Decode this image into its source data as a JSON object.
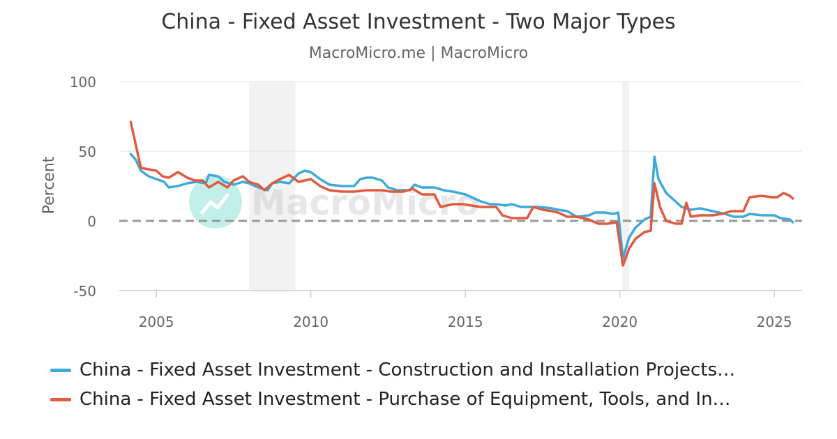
{
  "header": {
    "title": "China - Fixed Asset Investment - Two Major Types",
    "subtitle": "MacroMicro.me | MacroMicro"
  },
  "watermark": {
    "text": "MacroMicro",
    "color": "#4fd6c0"
  },
  "chart_data": {
    "type": "line",
    "title": "China - Fixed Asset Investment - Two Major Types",
    "subtitle": "MacroMicro.me | MacroMicro",
    "ylabel": "Percent",
    "xlabel": "",
    "xlim": [
      2003.8,
      2025.9
    ],
    "ylim": [
      -50,
      100
    ],
    "y_ticks": [
      100,
      50,
      0,
      -50
    ],
    "x_ticks": [
      2005,
      2010,
      2015,
      2020,
      2025
    ],
    "grid": true,
    "zero_line": "dashed",
    "legend_position": "bottom",
    "shaded_periods": [
      [
        2008.0,
        2009.5
      ],
      [
        2020.08,
        2020.3
      ]
    ],
    "series": [
      {
        "name": "China - Fixed Asset Investment - Construction and Installation Projects…",
        "color": "#3fa9dc",
        "points": [
          [
            2004.17,
            48
          ],
          [
            2004.33,
            44
          ],
          [
            2004.5,
            36
          ],
          [
            2004.75,
            32
          ],
          [
            2005.0,
            30
          ],
          [
            2005.25,
            28
          ],
          [
            2005.4,
            24
          ],
          [
            2005.7,
            25
          ],
          [
            2006.0,
            27
          ],
          [
            2006.3,
            28
          ],
          [
            2006.6,
            27
          ],
          [
            2006.7,
            33
          ],
          [
            2007.0,
            32
          ],
          [
            2007.2,
            28
          ],
          [
            2007.5,
            26
          ],
          [
            2007.8,
            28
          ],
          [
            2008.0,
            27
          ],
          [
            2008.3,
            24
          ],
          [
            2008.6,
            22
          ],
          [
            2008.75,
            27
          ],
          [
            2009.0,
            28
          ],
          [
            2009.3,
            27
          ],
          [
            2009.6,
            34
          ],
          [
            2009.8,
            36
          ],
          [
            2010.0,
            35
          ],
          [
            2010.3,
            30
          ],
          [
            2010.6,
            26
          ],
          [
            2011.0,
            25
          ],
          [
            2011.4,
            25
          ],
          [
            2011.6,
            30
          ],
          [
            2011.8,
            31
          ],
          [
            2012.0,
            31
          ],
          [
            2012.3,
            29
          ],
          [
            2012.5,
            24
          ],
          [
            2012.8,
            22
          ],
          [
            2013.0,
            22
          ],
          [
            2013.2,
            22
          ],
          [
            2013.35,
            26
          ],
          [
            2013.6,
            24
          ],
          [
            2014.0,
            24
          ],
          [
            2014.3,
            22
          ],
          [
            2014.6,
            21
          ],
          [
            2015.0,
            19
          ],
          [
            2015.3,
            16
          ],
          [
            2015.5,
            14
          ],
          [
            2015.8,
            12
          ],
          [
            2016.0,
            12
          ],
          [
            2016.3,
            11
          ],
          [
            2016.5,
            12
          ],
          [
            2016.8,
            10
          ],
          [
            2017.0,
            10
          ],
          [
            2017.4,
            10
          ],
          [
            2017.8,
            9
          ],
          [
            2018.0,
            8
          ],
          [
            2018.3,
            7
          ],
          [
            2018.6,
            3
          ],
          [
            2019.0,
            4
          ],
          [
            2019.2,
            6
          ],
          [
            2019.5,
            6
          ],
          [
            2019.8,
            5
          ],
          [
            2019.95,
            6
          ],
          [
            2020.1,
            -27
          ],
          [
            2020.3,
            -12
          ],
          [
            2020.5,
            -5
          ],
          [
            2020.8,
            1
          ],
          [
            2021.0,
            3
          ],
          [
            2021.12,
            46
          ],
          [
            2021.25,
            30
          ],
          [
            2021.5,
            20
          ],
          [
            2021.8,
            14
          ],
          [
            2022.0,
            10
          ],
          [
            2022.3,
            8
          ],
          [
            2022.6,
            9
          ],
          [
            2023.0,
            7
          ],
          [
            2023.4,
            5
          ],
          [
            2023.7,
            3
          ],
          [
            2024.0,
            3
          ],
          [
            2024.2,
            5
          ],
          [
            2024.6,
            4
          ],
          [
            2025.0,
            4
          ],
          [
            2025.2,
            2
          ],
          [
            2025.5,
            1
          ],
          [
            2025.6,
            -1
          ]
        ]
      },
      {
        "name": "China - Fixed Asset Investment - Purchase of Equipment, Tools, and In…",
        "color": "#e05a3f",
        "points": [
          [
            2004.17,
            71
          ],
          [
            2004.33,
            55
          ],
          [
            2004.5,
            38
          ],
          [
            2004.75,
            37
          ],
          [
            2005.0,
            36
          ],
          [
            2005.2,
            32
          ],
          [
            2005.4,
            31
          ],
          [
            2005.7,
            35
          ],
          [
            2006.0,
            31
          ],
          [
            2006.25,
            29
          ],
          [
            2006.5,
            29
          ],
          [
            2006.7,
            24
          ],
          [
            2007.0,
            28
          ],
          [
            2007.3,
            24
          ],
          [
            2007.5,
            29
          ],
          [
            2007.8,
            32
          ],
          [
            2008.0,
            28
          ],
          [
            2008.3,
            26
          ],
          [
            2008.5,
            22
          ],
          [
            2008.75,
            27
          ],
          [
            2009.0,
            30
          ],
          [
            2009.3,
            33
          ],
          [
            2009.6,
            28
          ],
          [
            2010.0,
            30
          ],
          [
            2010.3,
            25
          ],
          [
            2010.6,
            22
          ],
          [
            2011.0,
            21
          ],
          [
            2011.4,
            21
          ],
          [
            2011.8,
            22
          ],
          [
            2012.0,
            22
          ],
          [
            2012.3,
            22
          ],
          [
            2012.6,
            21
          ],
          [
            2013.0,
            21
          ],
          [
            2013.3,
            23
          ],
          [
            2013.6,
            19
          ],
          [
            2014.0,
            19
          ],
          [
            2014.2,
            10
          ],
          [
            2014.6,
            12
          ],
          [
            2014.9,
            12
          ],
          [
            2015.2,
            11
          ],
          [
            2015.5,
            10
          ],
          [
            2015.8,
            10
          ],
          [
            2016.0,
            10
          ],
          [
            2016.2,
            4
          ],
          [
            2016.5,
            2
          ],
          [
            2016.8,
            2
          ],
          [
            2017.0,
            2
          ],
          [
            2017.2,
            10
          ],
          [
            2017.5,
            8
          ],
          [
            2017.8,
            7
          ],
          [
            2018.0,
            6
          ],
          [
            2018.3,
            3
          ],
          [
            2018.6,
            3
          ],
          [
            2019.0,
            1
          ],
          [
            2019.3,
            -2
          ],
          [
            2019.6,
            -2
          ],
          [
            2019.9,
            -1
          ],
          [
            2020.1,
            -32
          ],
          [
            2020.3,
            -20
          ],
          [
            2020.5,
            -13
          ],
          [
            2020.8,
            -8
          ],
          [
            2021.0,
            -7
          ],
          [
            2021.12,
            27
          ],
          [
            2021.3,
            10
          ],
          [
            2021.5,
            0
          ],
          [
            2021.8,
            -2
          ],
          [
            2022.0,
            -2
          ],
          [
            2022.15,
            13
          ],
          [
            2022.3,
            3
          ],
          [
            2022.6,
            4
          ],
          [
            2023.0,
            4
          ],
          [
            2023.3,
            5
          ],
          [
            2023.6,
            7
          ],
          [
            2024.0,
            7
          ],
          [
            2024.2,
            17
          ],
          [
            2024.6,
            18
          ],
          [
            2024.9,
            17
          ],
          [
            2025.1,
            17
          ],
          [
            2025.3,
            20
          ],
          [
            2025.5,
            18
          ],
          [
            2025.6,
            16
          ]
        ]
      }
    ]
  }
}
